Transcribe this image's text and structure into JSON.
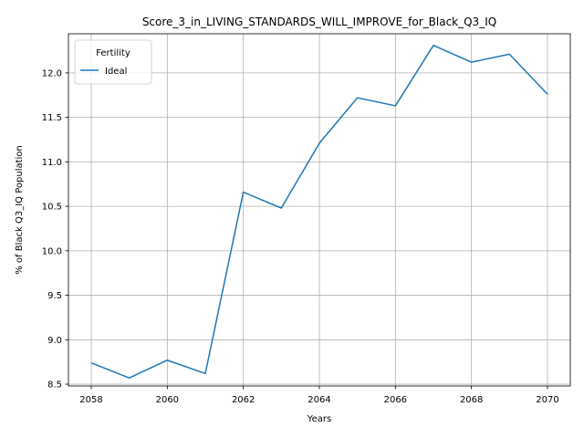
{
  "chart_data": {
    "type": "line",
    "title": "Score_3_in_LIVING_STANDARDS_WILL_IMPROVE_for_Black_Q3_IQ",
    "xlabel": "Years",
    "ylabel": "% of Black Q3_IQ Population",
    "x": [
      2058,
      2059,
      2060,
      2061,
      2062,
      2063,
      2064,
      2065,
      2066,
      2067,
      2068,
      2069,
      2070
    ],
    "series": [
      {
        "name": "Ideal",
        "color": "#1f77b4",
        "values": [
          8.74,
          8.57,
          8.77,
          8.62,
          10.66,
          10.48,
          11.21,
          11.72,
          11.63,
          12.31,
          12.12,
          12.21,
          11.76
        ]
      }
    ],
    "xlim": [
      2057.4,
      2070.6
    ],
    "ylim": [
      8.48,
      12.44
    ],
    "xticks": [
      2058,
      2060,
      2062,
      2064,
      2066,
      2068,
      2070
    ],
    "yticks": [
      "8.5",
      "9.0",
      "9.5",
      "10.0",
      "10.5",
      "11.0",
      "11.5",
      "12.0"
    ],
    "grid": true,
    "legend": {
      "title": "Fertility",
      "placement": "top-left"
    }
  }
}
